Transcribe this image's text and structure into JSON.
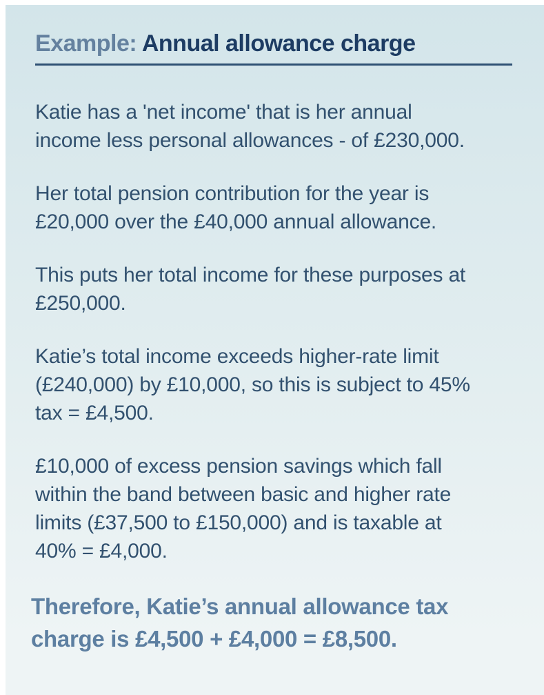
{
  "colors": {
    "page-bg": "#ffffff",
    "card-bg-top": "#d3e5ea",
    "card-bg-mid": "#e3eef0",
    "card-bg-bottom": "#eef4f5",
    "title-prefix": "#64819f",
    "title-main": "#1d3c63",
    "rule": "#2e5073",
    "body-text": "#32516f",
    "conclusion-text": "#5d7fa1"
  },
  "card": {
    "header": {
      "prefix": "Example: ",
      "title": "Annual allowance charge"
    },
    "paragraphs": [
      {
        "lines": [
          "Katie has a 'net income' that is her annual",
          "income less personal allowances - of £230,000."
        ]
      },
      {
        "lines": [
          "Her total pension contribution for the year is",
          "£20,000 over the £40,000 annual allowance."
        ]
      },
      {
        "lines": [
          "This puts her total income for these purposes at",
          "£250,000."
        ]
      },
      {
        "lines": [
          "Katie’s total income exceeds higher-rate limit",
          "(£240,000) by £10,000, so this is subject to 45%",
          "tax = £4,500."
        ]
      },
      {
        "lines": [
          "£10,000 of excess pension savings which fall",
          "within the band between basic and higher rate",
          "limits (£37,500 to £150,000) and is taxable at",
          "40% = £4,000."
        ]
      }
    ],
    "conclusion": {
      "lines": [
        "Therefore, Katie’s annual allowance tax",
        "charge is £4,500 + £4,000 = £8,500."
      ]
    }
  }
}
